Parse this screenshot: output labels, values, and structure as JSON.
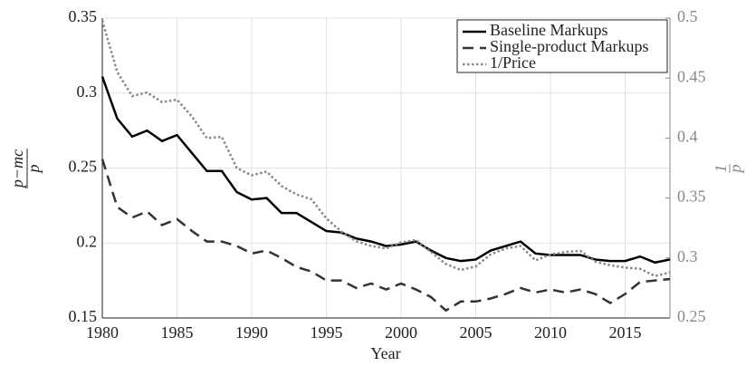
{
  "chart_data": {
    "type": "line",
    "xlabel": "Year",
    "ylabel": {
      "numerator": "p−mc",
      "denominator": "p"
    },
    "y2label": {
      "numerator": "1",
      "denominator": "p"
    },
    "x": [
      1980,
      1981,
      1982,
      1983,
      1984,
      1985,
      1986,
      1987,
      1988,
      1989,
      1990,
      1991,
      1992,
      1993,
      1994,
      1995,
      1996,
      1997,
      1998,
      1999,
      2000,
      2001,
      2002,
      2003,
      2004,
      2005,
      2006,
      2007,
      2008,
      2009,
      2010,
      2011,
      2012,
      2013,
      2014,
      2015,
      2016,
      2017,
      2018
    ],
    "xlim": [
      1980,
      2018
    ],
    "xticks": [
      1980,
      1985,
      1990,
      1995,
      2000,
      2005,
      2010,
      2015
    ],
    "ylim": [
      0.15,
      0.35
    ],
    "yticks": [
      0.15,
      0.2,
      0.25,
      0.3,
      0.35
    ],
    "y2lim": [
      0.25,
      0.5
    ],
    "y2ticks": [
      0.25,
      0.3,
      0.35,
      0.4,
      0.45,
      0.5
    ],
    "grid": true,
    "legend": "top-right",
    "series": [
      {
        "name": "Baseline Markups",
        "color": "#000000",
        "dash": "solid",
        "values": [
          0.311,
          0.283,
          0.271,
          0.275,
          0.268,
          0.272,
          0.26,
          0.248,
          0.248,
          0.234,
          0.229,
          0.23,
          0.22,
          0.22,
          0.214,
          0.208,
          0.207,
          0.203,
          0.201,
          0.198,
          0.199,
          0.201,
          0.195,
          0.19,
          0.188,
          0.189,
          0.195,
          0.198,
          0.201,
          0.193,
          0.192,
          0.192,
          0.192,
          0.189,
          0.188,
          0.188,
          0.191,
          0.187,
          0.189
        ]
      },
      {
        "name": "Single-product Markups",
        "color": "#333333",
        "dash": "dashed",
        "values": [
          0.256,
          0.224,
          0.217,
          0.221,
          0.212,
          0.216,
          0.208,
          0.201,
          0.201,
          0.198,
          0.193,
          0.195,
          0.19,
          0.184,
          0.181,
          0.175,
          0.175,
          0.17,
          0.173,
          0.169,
          0.173,
          0.169,
          0.164,
          0.155,
          0.161,
          0.161,
          0.163,
          0.166,
          0.17,
          0.167,
          0.169,
          0.167,
          0.169,
          0.166,
          0.16,
          0.166,
          0.174,
          0.175,
          0.176
        ]
      },
      {
        "name": "1/Price",
        "color": "#888888",
        "dash": "dotted",
        "axis": "y2",
        "values": [
          0.498,
          0.455,
          0.435,
          0.438,
          0.43,
          0.432,
          0.418,
          0.4,
          0.401,
          0.375,
          0.369,
          0.372,
          0.36,
          0.353,
          0.349,
          0.333,
          0.322,
          0.314,
          0.31,
          0.308,
          0.313,
          0.315,
          0.305,
          0.295,
          0.29,
          0.293,
          0.303,
          0.308,
          0.31,
          0.298,
          0.303,
          0.305,
          0.306,
          0.297,
          0.294,
          0.292,
          0.291,
          0.285,
          0.288
        ]
      }
    ]
  }
}
